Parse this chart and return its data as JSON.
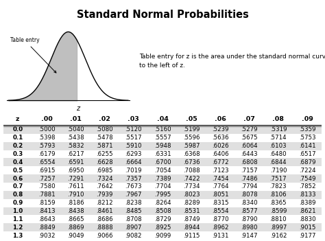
{
  "title": "Standard Normal Probabilities",
  "description": "Table entry for z is the area under the standard normal curve\nto the left of z.",
  "table_label": "Table entry",
  "col_headers": [
    "z",
    ".00",
    ".01",
    ".02",
    ".03",
    ".04",
    ".05",
    ".06",
    ".07",
    ".08",
    ".09"
  ],
  "rows": [
    [
      "0.0",
      ".5000",
      ".5040",
      ".5080",
      ".5120",
      ".5160",
      ".5199",
      ".5239",
      ".5279",
      ".5319",
      ".5359"
    ],
    [
      "0.1",
      ".5398",
      ".5438",
      ".5478",
      ".5517",
      ".5557",
      ".5596",
      ".5636",
      ".5675",
      ".5714",
      ".5753"
    ],
    [
      "0.2",
      ".5793",
      ".5832",
      ".5871",
      ".5910",
      ".5948",
      ".5987",
      ".6026",
      ".6064",
      ".6103",
      ".6141"
    ],
    [
      "0.3",
      ".6179",
      ".6217",
      ".6255",
      ".6293",
      ".6331",
      ".6368",
      ".6406",
      ".6443",
      ".6480",
      ".6517"
    ],
    [
      "0.4",
      ".6554",
      ".6591",
      ".6628",
      ".6664",
      ".6700",
      ".6736",
      ".6772",
      ".6808",
      ".6844",
      ".6879"
    ],
    [
      "0.5",
      ".6915",
      ".6950",
      ".6985",
      ".7019",
      ".7054",
      ".7088",
      ".7123",
      ".7157",
      ".7190",
      ".7224"
    ],
    [
      "0.6",
      ".7257",
      ".7291",
      ".7324",
      ".7357",
      ".7389",
      ".7422",
      ".7454",
      ".7486",
      ".7517",
      ".7549"
    ],
    [
      "0.7",
      ".7580",
      ".7611",
      ".7642",
      ".7673",
      ".7704",
      ".7734",
      ".7764",
      ".7794",
      ".7823",
      ".7852"
    ],
    [
      "0.8",
      ".7881",
      ".7910",
      ".7939",
      ".7967",
      ".7995",
      ".8023",
      ".8051",
      ".8078",
      ".8106",
      ".8133"
    ],
    [
      "0.9",
      ".8159",
      ".8186",
      ".8212",
      ".8238",
      ".8264",
      ".8289",
      ".8315",
      ".8340",
      ".8365",
      ".8389"
    ],
    [
      "1.0",
      ".8413",
      ".8438",
      ".8461",
      ".8485",
      ".8508",
      ".8531",
      ".8554",
      ".8577",
      ".8599",
      ".8621"
    ],
    [
      "1.1",
      ".8643",
      ".8665",
      ".8686",
      ".8708",
      ".8729",
      ".8749",
      ".8770",
      ".8790",
      ".8810",
      ".8830"
    ],
    [
      "1.2",
      ".8849",
      ".8869",
      ".8888",
      ".8907",
      ".8925",
      ".8944",
      ".8962",
      ".8980",
      ".8997",
      ".9015"
    ],
    [
      "1.3",
      ".9032",
      ".9049",
      ".9066",
      ".9082",
      ".9099",
      ".9115",
      ".9131",
      ".9147",
      ".9162",
      ".9177"
    ]
  ],
  "shaded_rows": [
    0,
    2,
    4,
    6,
    8,
    10,
    12
  ],
  "shade_color": "#e0e0e0",
  "bg_color": "#ffffff",
  "text_color": "#000000",
  "font_size_title": 10.5,
  "font_size_table": 6.2,
  "font_size_header": 6.8,
  "font_size_desc": 6.5
}
